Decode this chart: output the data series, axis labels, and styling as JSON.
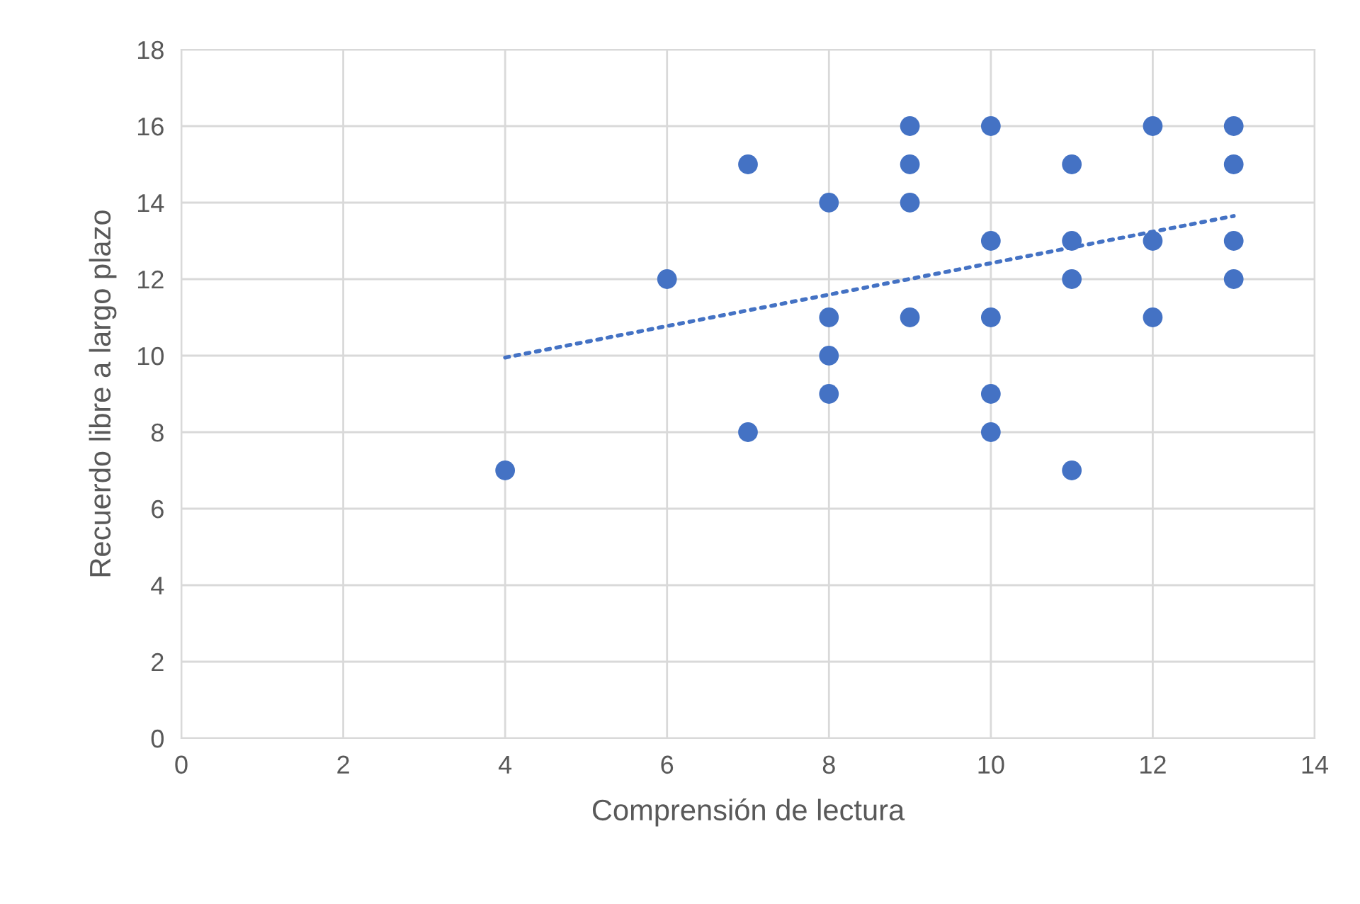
{
  "chart_data": {
    "type": "scatter",
    "xlabel": "Comprensión de lectura",
    "ylabel": "Recuerdo libre a largo plazo",
    "series": [
      {
        "color": "#4472c4",
        "marker": "circle",
        "x": [
          4,
          6,
          7,
          7,
          8,
          8,
          8,
          8,
          9,
          9,
          9,
          9,
          10,
          10,
          10,
          10,
          10,
          11,
          11,
          11,
          11,
          12,
          12,
          12,
          13,
          13,
          13,
          13
        ],
        "values": [
          7,
          12,
          15,
          8,
          14,
          11,
          10,
          9,
          16,
          15,
          14,
          11,
          16,
          13,
          11,
          9,
          8,
          15,
          13,
          12,
          7,
          16,
          13,
          11,
          16,
          15,
          13,
          12
        ]
      },
      {
        "type": "line",
        "color": "#4472c4",
        "line_style": "dotted",
        "marker": "none",
        "x": [
          4,
          13
        ],
        "values": [
          9.95,
          13.65
        ]
      }
    ],
    "xlim": [
      0,
      14
    ],
    "xticks": [
      0,
      2,
      4,
      6,
      8,
      10,
      12,
      14
    ],
    "ylim": [
      0,
      18
    ],
    "yticks": [
      0,
      2,
      4,
      6,
      8,
      10,
      12,
      14,
      16,
      18
    ],
    "grid": true,
    "legend": false
  }
}
